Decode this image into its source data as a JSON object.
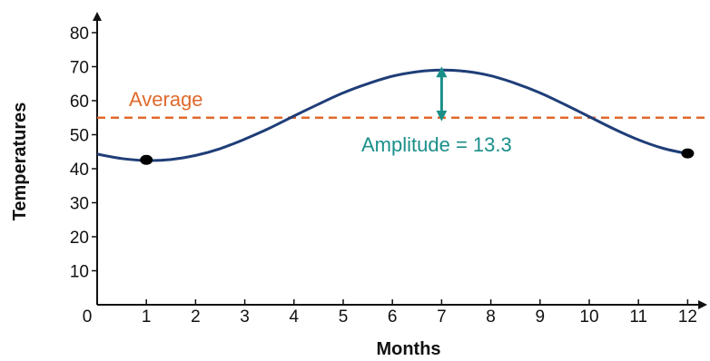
{
  "chart_data": {
    "type": "line",
    "xlabel": "Months",
    "ylabel": "Temperatures",
    "xlim": [
      0,
      12.4
    ],
    "ylim": [
      0,
      85
    ],
    "x_ticks": [
      0,
      1,
      2,
      3,
      4,
      5,
      6,
      7,
      8,
      9,
      10,
      11,
      12
    ],
    "y_ticks": [
      10,
      20,
      30,
      40,
      50,
      60,
      70,
      80
    ],
    "origin_label": "0",
    "grid": false,
    "series": [
      {
        "color": "#1f3e78",
        "x": [
          0,
          0.5,
          1,
          1.5,
          2,
          2.5,
          3,
          3.5,
          4,
          4.5,
          5,
          5.5,
          6,
          6.5,
          7,
          7.5,
          8,
          8.5,
          9,
          9.5,
          10,
          10.5,
          11,
          11.5,
          12
        ],
        "y": [
          44.3,
          43.0,
          42.4,
          42.7,
          43.9,
          45.9,
          48.7,
          51.9,
          55.5,
          59.0,
          62.3,
          65.0,
          67.2,
          68.5,
          69.0,
          68.6,
          67.3,
          65.1,
          62.3,
          58.9,
          55.3,
          51.7,
          48.5,
          46.0,
          44.4
        ]
      }
    ],
    "points": [
      {
        "x": 1,
        "y": 42.6,
        "color": "#000000"
      },
      {
        "x": 12,
        "y": 44.5,
        "color": "#000000"
      }
    ],
    "average": {
      "label": "Average",
      "value": 55,
      "color": "#e06a2c"
    },
    "amplitude": {
      "label": "Amplitude = 13.3",
      "x": 7,
      "from": 55,
      "to": 69,
      "color": "#1a8f8a"
    }
  }
}
